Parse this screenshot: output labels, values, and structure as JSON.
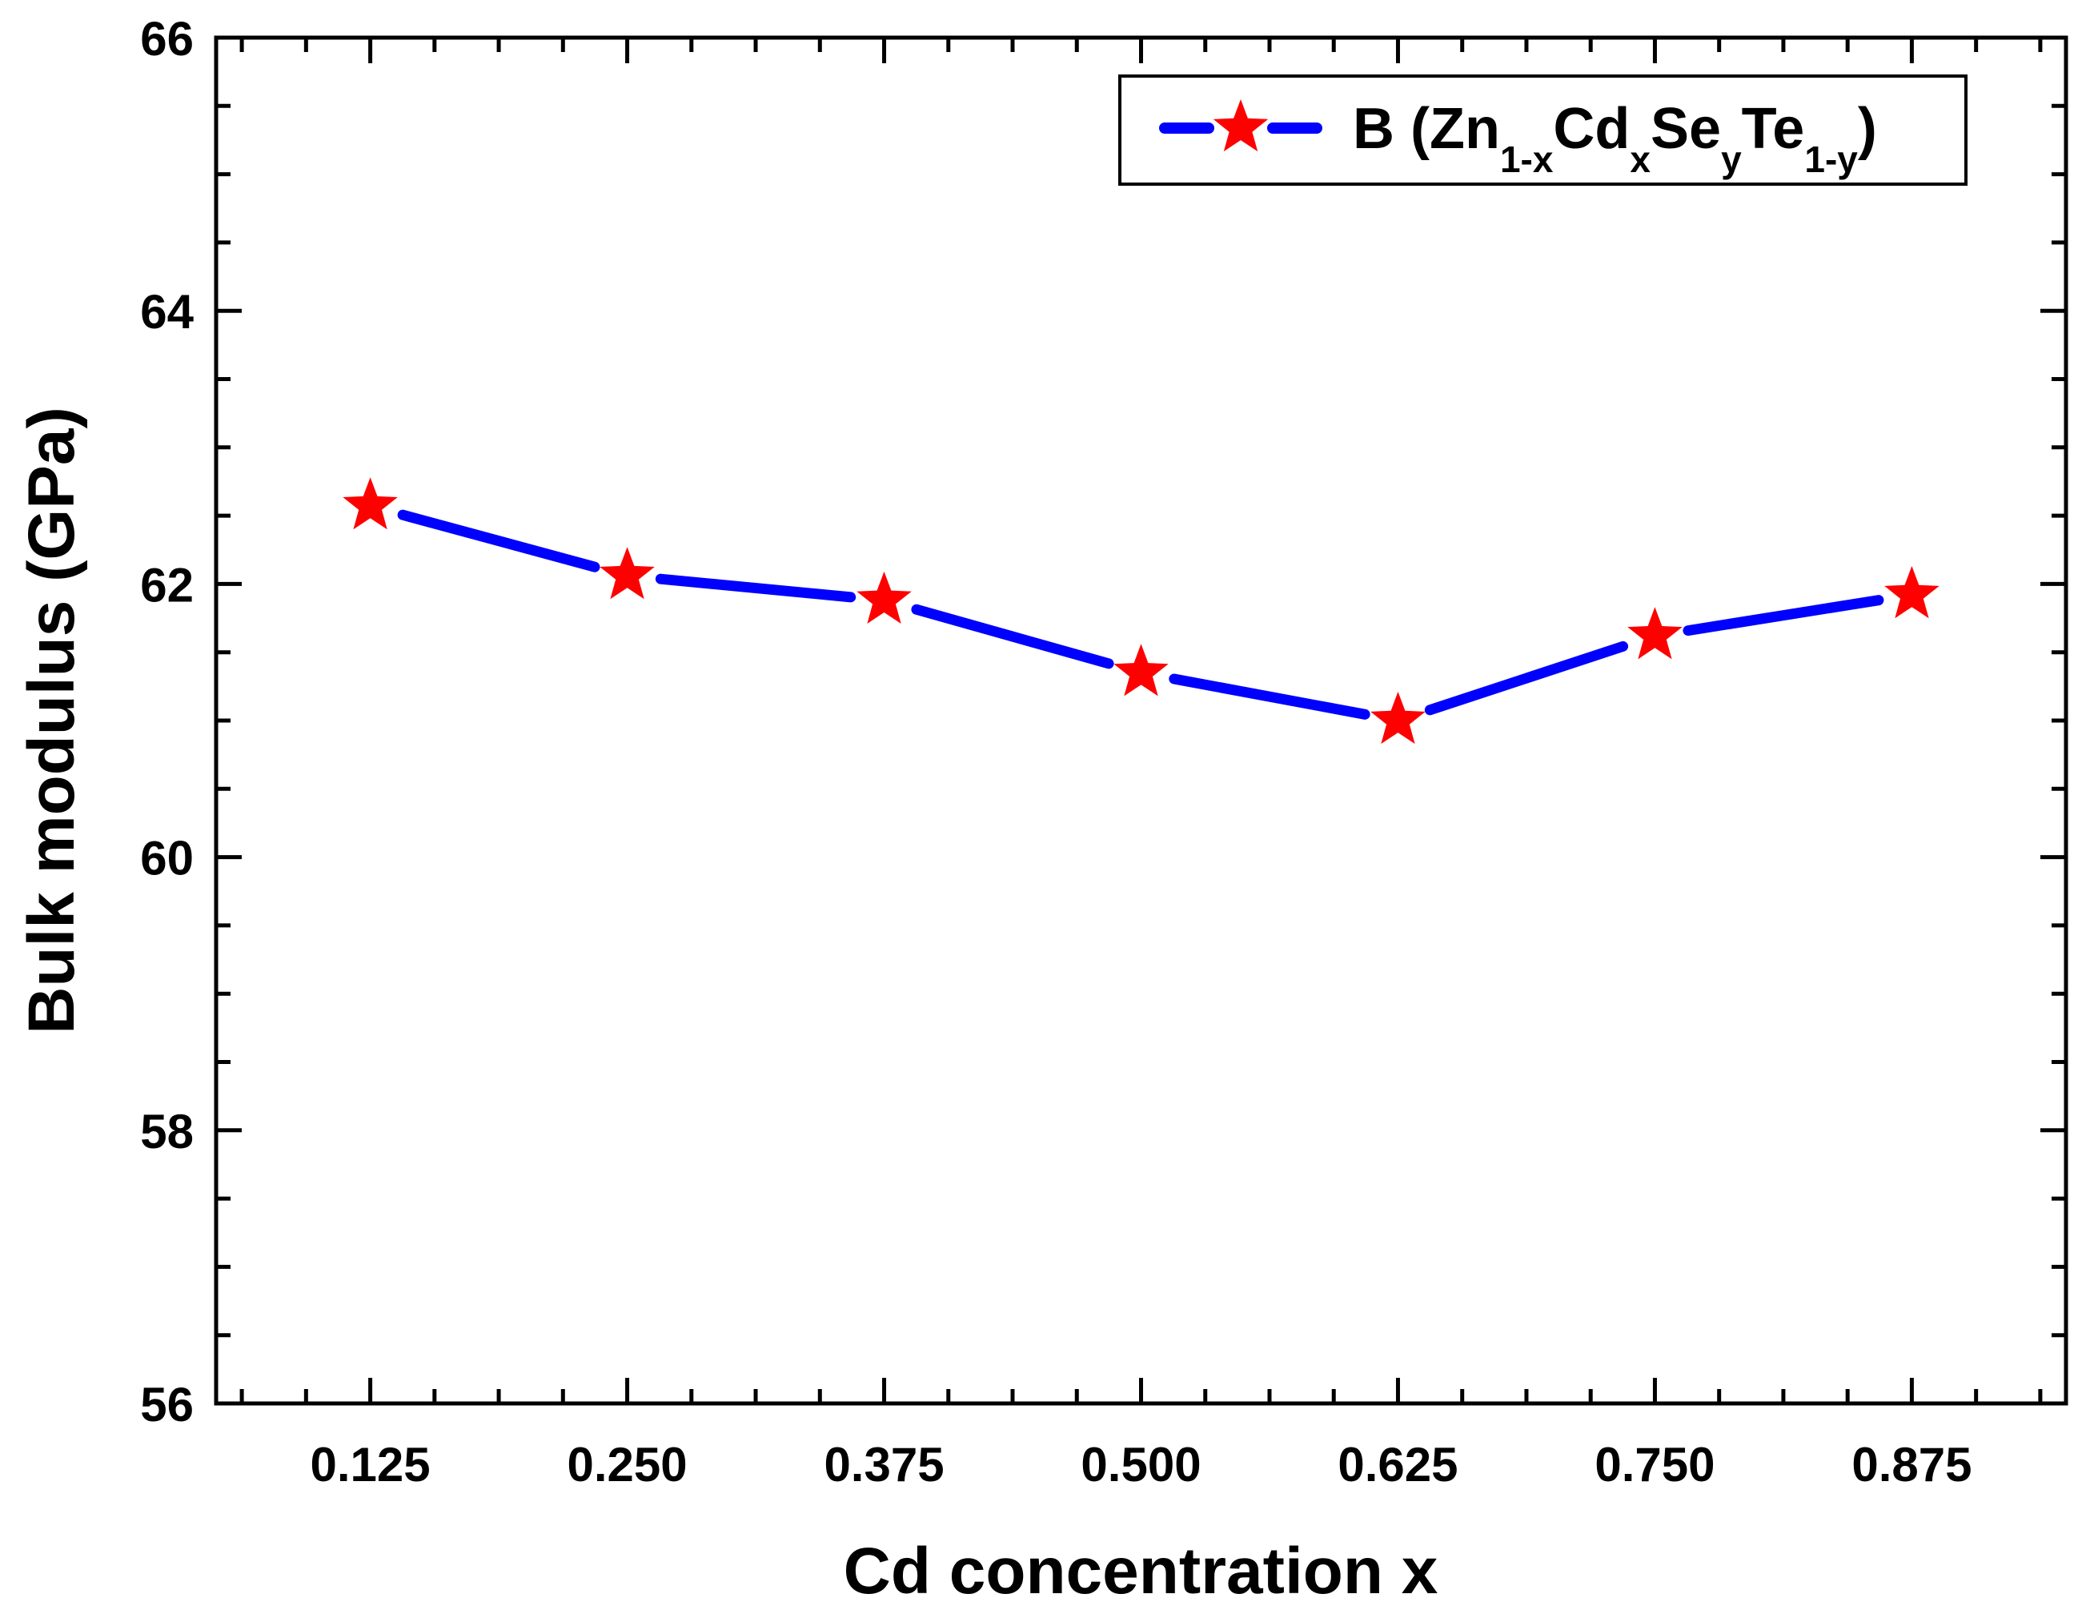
{
  "chart_data": {
    "type": "line",
    "title": "",
    "xlabel": "Cd concentration x",
    "ylabel": "Bulk modulus (GPa)",
    "xlim": [
      0.05,
      0.95
    ],
    "ylim": [
      56,
      66
    ],
    "x_ticks": [
      "0.125",
      "0.250",
      "0.375",
      "0.500",
      "0.625",
      "0.750",
      "0.875"
    ],
    "y_ticks": [
      "56",
      "58",
      "60",
      "62",
      "64",
      "66"
    ],
    "grid": false,
    "legend_position": "top-right",
    "legend": {
      "main": "B (Zn",
      "sub1": "1-x",
      "cd": "Cd",
      "sub2": "x",
      "se": "Se",
      "sub3": "y",
      "te": "Te",
      "sub4": "1-y",
      "close": ")"
    },
    "series": [
      {
        "name": "B (Zn1-xCdxSeyTe1-y)",
        "line_color": "#0000ff",
        "marker_color": "#ff0000",
        "marker": "star",
        "x": [
          0.125,
          0.25,
          0.375,
          0.5,
          0.625,
          0.75,
          0.875
        ],
        "y": [
          62.57,
          62.06,
          61.88,
          61.35,
          61.0,
          61.62,
          61.92
        ]
      }
    ]
  }
}
